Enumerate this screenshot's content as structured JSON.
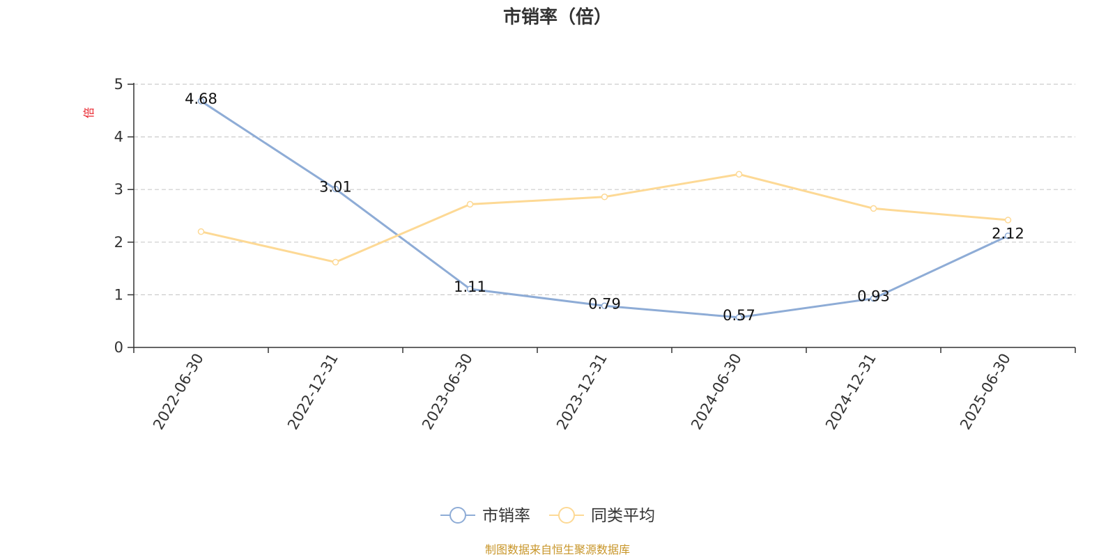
{
  "chart_data": {
    "type": "line",
    "title": "市销率（倍）",
    "ylabel": "倍",
    "ylim": [
      0,
      5
    ],
    "yticks": [
      0,
      1,
      2,
      3,
      4,
      5
    ],
    "categories": [
      "2022-06-30",
      "2022-12-31",
      "2023-06-30",
      "2023-12-31",
      "2024-06-30",
      "2024-12-31",
      "2025-06-30"
    ],
    "series": [
      {
        "name": "市销率",
        "color": "#8eacd6",
        "values": [
          4.68,
          3.01,
          1.11,
          0.79,
          0.57,
          0.93,
          2.12
        ],
        "show_labels": true
      },
      {
        "name": "同类平均",
        "color": "#fdd995",
        "values": [
          2.2,
          1.62,
          2.72,
          2.86,
          3.29,
          2.64,
          2.42
        ],
        "show_labels": false
      }
    ],
    "grid": true,
    "legend_position": "bottom-center"
  },
  "source": "制图数据来自恒生聚源数据库",
  "colors": {
    "axis": "#333333",
    "grid": "#cccccc",
    "unit": "#e8212a",
    "source": "#c8962a"
  }
}
